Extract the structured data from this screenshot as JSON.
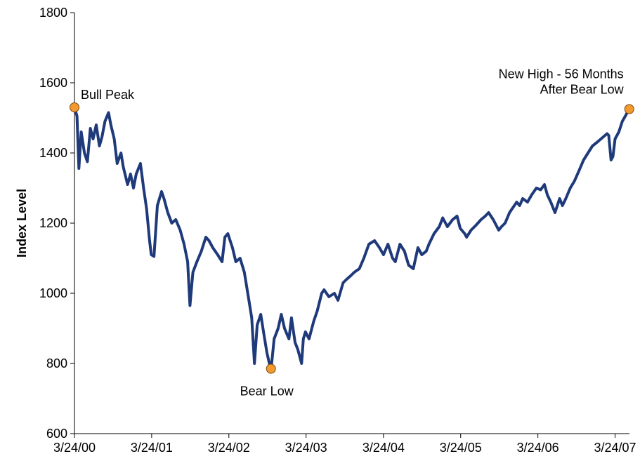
{
  "chart_data": {
    "type": "line",
    "title": "",
    "xlabel": "",
    "ylabel": "Index Level",
    "ylim": [
      600,
      1800
    ],
    "yticks": [
      600,
      800,
      1000,
      1200,
      1400,
      1600,
      1800
    ],
    "xlim": [
      "2000-03-24",
      "2007-05-31"
    ],
    "xticks": [
      "3/24/00",
      "3/24/01",
      "3/24/02",
      "3/24/03",
      "3/24/04",
      "3/24/05",
      "3/24/06",
      "3/24/07"
    ],
    "grid": false,
    "series_color": "#1f3a7a",
    "marker_color": "#f29a2e",
    "series": [
      {
        "x": [
          "2000-03-24",
          "2000-04-05",
          "2000-04-14",
          "2000-04-25",
          "2000-05-10",
          "2000-05-24",
          "2000-06-07",
          "2000-06-20",
          "2000-07-05",
          "2000-07-20",
          "2000-08-01",
          "2000-08-15",
          "2000-09-01",
          "2000-09-12",
          "2000-09-28",
          "2000-10-12",
          "2000-10-30",
          "2000-11-10",
          "2000-11-30",
          "2000-12-14",
          "2000-12-28",
          "2001-01-10",
          "2001-01-30",
          "2001-02-14",
          "2001-02-28",
          "2001-03-14",
          "2001-03-22",
          "2001-04-04",
          "2001-04-20",
          "2001-05-10",
          "2001-05-21",
          "2001-06-08",
          "2001-06-27",
          "2001-07-16",
          "2001-08-06",
          "2001-08-24",
          "2001-09-10",
          "2001-09-21",
          "2001-10-05",
          "2001-10-24",
          "2001-11-14",
          "2001-12-05",
          "2001-12-20",
          "2002-01-07",
          "2002-01-30",
          "2002-02-20",
          "2002-03-05",
          "2002-03-19",
          "2002-04-10",
          "2002-04-26",
          "2002-05-16",
          "2002-06-05",
          "2002-06-24",
          "2002-07-10",
          "2002-07-23",
          "2002-08-05",
          "2002-08-22",
          "2002-09-05",
          "2002-09-20",
          "2002-10-09",
          "2002-10-24",
          "2002-11-12",
          "2002-11-27",
          "2002-12-12",
          "2003-01-02",
          "2003-01-14",
          "2003-01-31",
          "2003-02-13",
          "2003-03-03",
          "2003-03-11",
          "2003-03-21",
          "2003-04-07",
          "2003-04-29",
          "2003-05-16",
          "2003-06-06",
          "2003-06-17",
          "2003-07-10",
          "2003-08-05",
          "2003-08-22",
          "2003-09-15",
          "2003-10-02",
          "2003-10-21",
          "2003-11-07",
          "2003-12-01",
          "2003-12-22",
          "2004-01-15",
          "2004-02-11",
          "2004-03-05",
          "2004-03-24",
          "2004-04-14",
          "2004-05-06",
          "2004-05-19",
          "2004-06-10",
          "2004-07-01",
          "2004-07-21",
          "2004-08-12",
          "2004-09-03",
          "2004-09-21",
          "2004-10-12",
          "2004-10-25",
          "2004-11-18",
          "2004-12-13",
          "2004-12-29",
          "2005-01-20",
          "2005-02-14",
          "2005-03-07",
          "2005-03-22",
          "2005-04-12",
          "2005-04-21",
          "2005-05-12",
          "2005-06-06",
          "2005-06-28",
          "2005-07-18",
          "2005-08-03",
          "2005-08-25",
          "2005-09-20",
          "2005-10-03",
          "2005-10-20",
          "2005-11-10",
          "2005-12-14",
          "2005-12-28",
          "2006-01-11",
          "2006-02-03",
          "2006-02-22",
          "2006-03-17",
          "2006-04-06",
          "2006-04-24",
          "2006-05-08",
          "2006-05-24",
          "2006-06-13",
          "2006-07-05",
          "2006-07-18",
          "2006-08-03",
          "2006-08-24",
          "2006-09-13",
          "2006-10-05",
          "2006-10-26",
          "2006-11-16",
          "2006-12-07",
          "2006-12-28",
          "2007-01-16",
          "2007-02-14",
          "2007-02-22",
          "2007-03-05",
          "2007-03-14",
          "2007-03-24",
          "2007-04-11",
          "2007-04-27",
          "2007-05-16",
          "2007-05-30"
        ],
        "values": [
          1530,
          1505,
          1356,
          1460,
          1400,
          1375,
          1470,
          1440,
          1480,
          1420,
          1445,
          1490,
          1515,
          1480,
          1440,
          1370,
          1400,
          1360,
          1310,
          1340,
          1300,
          1340,
          1370,
          1300,
          1240,
          1150,
          1110,
          1105,
          1250,
          1290,
          1270,
          1230,
          1200,
          1210,
          1180,
          1140,
          1090,
          965,
          1060,
          1090,
          1120,
          1160,
          1150,
          1130,
          1110,
          1090,
          1160,
          1170,
          1130,
          1090,
          1100,
          1060,
          990,
          930,
          800,
          910,
          940,
          885,
          830,
          780,
          870,
          900,
          940,
          900,
          870,
          930,
          860,
          840,
          800,
          870,
          890,
          870,
          920,
          950,
          1000,
          1010,
          990,
          1000,
          980,
          1030,
          1040,
          1050,
          1060,
          1070,
          1100,
          1140,
          1150,
          1130,
          1110,
          1140,
          1100,
          1090,
          1140,
          1120,
          1080,
          1070,
          1130,
          1110,
          1120,
          1140,
          1170,
          1190,
          1215,
          1190,
          1210,
          1220,
          1185,
          1170,
          1160,
          1180,
          1195,
          1210,
          1220,
          1230,
          1210,
          1180,
          1190,
          1200,
          1230,
          1260,
          1250,
          1270,
          1260,
          1280,
          1300,
          1295,
          1310,
          1280,
          1260,
          1230,
          1270,
          1250,
          1270,
          1300,
          1320,
          1350,
          1380,
          1400,
          1420,
          1430,
          1440,
          1455,
          1450,
          1380,
          1390,
          1440,
          1460,
          1490,
          1510,
          1530
        ]
      }
    ],
    "annotations": [
      {
        "text": "Bull Peak",
        "x": "2000-03-24",
        "y": 1530
      },
      {
        "text": "Bear Low",
        "x": "2002-10-09",
        "y": 785
      },
      {
        "lines": [
          "New High - 56 Months",
          "After Bear Low"
        ],
        "x": "2007-05-30",
        "y": 1525
      }
    ]
  }
}
